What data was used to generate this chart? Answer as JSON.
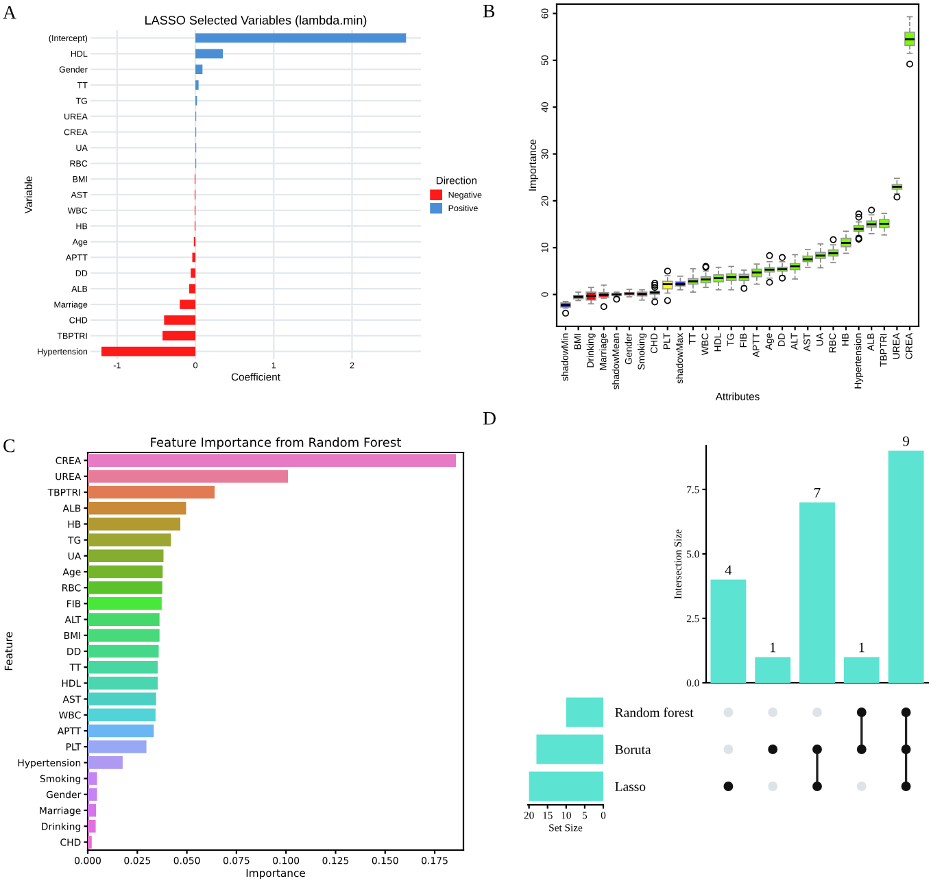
{
  "chart_data": [
    {
      "type": "bar",
      "orientation": "horizontal",
      "title": "LASSO Selected Variables (lambda.min)",
      "xlabel": "Coefficient",
      "ylabel": "Variable",
      "legend_title": "Direction",
      "legend": "right",
      "grid": true,
      "annotations": [
        "A"
      ],
      "categories": [
        "(Intercept)",
        "HDL",
        "Gender",
        "TT",
        "TG",
        "UREA",
        "CREA",
        "UA",
        "RBC",
        "BMI",
        "AST",
        "WBC",
        "HB",
        "Age",
        "APTT",
        "DD",
        "ALB",
        "Marriage",
        "CHD",
        "TBPTRI",
        "Hypertension"
      ],
      "series": [
        {
          "name": "Negative",
          "color": "#ff1a1a",
          "values": [
            null,
            null,
            null,
            null,
            null,
            null,
            null,
            null,
            null,
            -0.01,
            -0.01,
            -0.01,
            -0.01,
            -0.02,
            -0.04,
            -0.06,
            -0.08,
            -0.2,
            -0.4,
            -0.42,
            -1.2
          ]
        },
        {
          "name": "Positive",
          "color": "#4a8fd6",
          "values": [
            2.69,
            0.35,
            0.09,
            0.04,
            0.02,
            0.01,
            0.01,
            0.01,
            0.01,
            null,
            null,
            null,
            null,
            null,
            null,
            null,
            null,
            null,
            null,
            null,
            null
          ]
        }
      ],
      "xlim": [
        -1.34,
        2.88
      ],
      "xticks": [
        -1,
        0,
        1,
        2
      ]
    },
    {
      "type": "box",
      "xlabel": "Attributes",
      "ylabel": "Importance",
      "annotations": [
        "B"
      ],
      "categories": [
        "shadowMin",
        "BMI",
        "Drinking",
        "Marriage",
        "shadowMean",
        "Gender",
        "Smoking",
        "CHD",
        "PLT",
        "shadowMax",
        "TT",
        "WBC",
        "HDL",
        "TG",
        "FIB",
        "APTT",
        "Age",
        "DD",
        "ALT",
        "AST",
        "UA",
        "RBC",
        "HB",
        "Hypertension",
        "ALB",
        "TBPTRI",
        "UREA",
        "CREA"
      ],
      "colors": [
        "#0000ff",
        "#ff0000",
        "#ff0000",
        "#ff0000",
        "#0000ff",
        "#ff0000",
        "#ff0000",
        "#ff0000",
        "#ffff00",
        "#0000ff",
        "#7cfc00",
        "#7cfc00",
        "#7cfc00",
        "#7cfc00",
        "#7cfc00",
        "#7cfc00",
        "#7cfc00",
        "#7cfc00",
        "#7cfc00",
        "#7cfc00",
        "#7cfc00",
        "#7cfc00",
        "#7cfc00",
        "#7cfc00",
        "#7cfc00",
        "#7cfc00",
        "#7cfc00",
        "#7cfc00"
      ],
      "boxes": [
        {
          "low": -2.9,
          "q1": -2.7,
          "median": -2.3,
          "q3": -1.8,
          "high": -1.5,
          "outliers": [
            -4
          ]
        },
        {
          "low": -1.3,
          "q1": -0.9,
          "median": -0.5,
          "q3": -0.2,
          "high": 0.5
        },
        {
          "low": -2,
          "q1": -1.2,
          "median": -0.3,
          "q3": 0.5,
          "high": 1.5
        },
        {
          "low": -0.8,
          "q1": -0.6,
          "median": -0.1,
          "q3": 0.4,
          "high": 2,
          "outliers": [
            -2.6
          ]
        },
        {
          "low": -0.5,
          "q1": -0.2,
          "median": 0,
          "q3": 0.2,
          "high": 0.5,
          "outliers": [
            -1
          ]
        },
        {
          "low": -0.5,
          "q1": -0.1,
          "median": 0.2,
          "q3": 0.4,
          "high": 1.1
        },
        {
          "low": -1.2,
          "q1": -0.3,
          "median": 0.1,
          "q3": 0.5,
          "high": 1
        },
        {
          "low": -0.8,
          "q1": 0.1,
          "median": 0.4,
          "q3": 0.7,
          "high": 1.2,
          "outliers": [
            1.5,
            2,
            2.4,
            -1.6
          ]
        },
        {
          "low": 0.3,
          "q1": 1.2,
          "median": 2.2,
          "q3": 2.8,
          "high": 4,
          "outliers": [
            5,
            -1.3
          ]
        },
        {
          "low": 1,
          "q1": 1.8,
          "median": 2.2,
          "q3": 2.7,
          "high": 3.9
        },
        {
          "low": 0.5,
          "q1": 2.2,
          "median": 2.8,
          "q3": 3.4,
          "high": 5.5
        },
        {
          "low": 1.5,
          "q1": 2.5,
          "median": 3.2,
          "q3": 3.8,
          "high": 5,
          "outliers": [
            5.8,
            6
          ]
        },
        {
          "low": 1,
          "q1": 2.7,
          "median": 3.5,
          "q3": 4.2,
          "high": 5.8
        },
        {
          "low": 1,
          "q1": 3,
          "median": 3.7,
          "q3": 4.4,
          "high": 6
        },
        {
          "low": 1.8,
          "q1": 3,
          "median": 3.7,
          "q3": 4.3,
          "high": 5.2,
          "outliers": [
            1.3
          ]
        },
        {
          "low": 2.2,
          "q1": 3.8,
          "median": 4.7,
          "q3": 5.4,
          "high": 6.5
        },
        {
          "low": 3.5,
          "q1": 4.8,
          "median": 5.3,
          "q3": 5.7,
          "high": 7,
          "outliers": [
            8.3,
            2.6
          ]
        },
        {
          "low": 4,
          "q1": 5,
          "median": 5.4,
          "q3": 5.8,
          "high": 7,
          "outliers": [
            7.9,
            3.5
          ]
        },
        {
          "low": 3.3,
          "q1": 5.3,
          "median": 6,
          "q3": 6.6,
          "high": 8.5
        },
        {
          "low": 5.8,
          "q1": 7,
          "median": 7.5,
          "q3": 8.2,
          "high": 9.6
        },
        {
          "low": 5.7,
          "q1": 7.7,
          "median": 8.3,
          "q3": 9,
          "high": 10.8
        },
        {
          "low": 6.8,
          "q1": 8.2,
          "median": 8.8,
          "q3": 9.5,
          "high": 10.6,
          "outliers": [
            11.7
          ]
        },
        {
          "low": 8.8,
          "q1": 10.2,
          "median": 11,
          "q3": 12,
          "high": 13.5
        },
        {
          "low": 12.5,
          "q1": 13.5,
          "median": 14,
          "q3": 14.7,
          "high": 15.5,
          "outliers": [
            16.5,
            17.2,
            11.8,
            12
          ]
        },
        {
          "low": 13,
          "q1": 14.4,
          "median": 15,
          "q3": 15.7,
          "high": 17,
          "outliers": [
            18
          ]
        },
        {
          "low": 12.7,
          "q1": 14.3,
          "median": 15.1,
          "q3": 16,
          "high": 17.3
        },
        {
          "low": 21.5,
          "q1": 22.5,
          "median": 23,
          "q3": 23.5,
          "high": 24.8,
          "outliers": [
            20.8
          ]
        },
        {
          "low": 51.5,
          "q1": 53.2,
          "median": 54.5,
          "q3": 56,
          "high": 59.3,
          "outliers": [
            49.2
          ]
        }
      ],
      "ylim": [
        -6.8,
        62
      ],
      "yticks": [
        0,
        10,
        20,
        30,
        40,
        50,
        60
      ]
    },
    {
      "type": "bar",
      "orientation": "horizontal",
      "title": "Feature Importance from Random Forest",
      "xlabel": "Importance",
      "ylabel": "Feature",
      "annotations": [
        "C"
      ],
      "categories": [
        "CREA",
        "UREA",
        "TBPTRI",
        "ALB",
        "HB",
        "TG",
        "UA",
        "Age",
        "RBC",
        "FIB",
        "ALT",
        "BMI",
        "DD",
        "TT",
        "HDL",
        "AST",
        "WBC",
        "APTT",
        "PLT",
        "Hypertension",
        "Smoking",
        "Gender",
        "Marriage",
        "Drinking",
        "CHD"
      ],
      "values": [
        0.1857,
        0.101,
        0.064,
        0.0496,
        0.0467,
        0.042,
        0.0382,
        0.0378,
        0.0376,
        0.0373,
        0.0362,
        0.0362,
        0.0358,
        0.0353,
        0.0353,
        0.0345,
        0.0342,
        0.0333,
        0.0296,
        0.0176,
        0.0047,
        0.0047,
        0.0042,
        0.004,
        0.002
      ],
      "colors": [
        "#e67ac4",
        "#e77c9a",
        "#e07b54",
        "#c98a3a",
        "#b09a31",
        "#9da632",
        "#86ad2f",
        "#74b52c",
        "#5cc22b",
        "#48e83a",
        "#45d86a",
        "#47d97a",
        "#46d88a",
        "#48d7a0",
        "#4bd6b0",
        "#4cd0c3",
        "#52d3d8",
        "#6ab6f5",
        "#97a8f5",
        "#ae9af3",
        "#c584f3",
        "#c584f3",
        "#d573ea",
        "#e26fe0",
        "#e76fd0"
      ],
      "xlim": [
        0,
        0.1895
      ],
      "xticks": [
        {
          "value": 0,
          "label": "0.000"
        },
        {
          "value": 0.025,
          "label": "0.025"
        },
        {
          "value": 0.05,
          "label": "0.050"
        },
        {
          "value": 0.075,
          "label": "0.075"
        },
        {
          "value": 0.1,
          "label": "0.100"
        },
        {
          "value": 0.125,
          "label": "0.125"
        },
        {
          "value": 0.15,
          "label": "0.150"
        },
        {
          "value": 0.175,
          "label": "0.175"
        }
      ]
    },
    {
      "type": "bar",
      "ylabel": "Intersection Size",
      "annotations": [
        "D"
      ],
      "data_labels": true,
      "categories": [
        null,
        null,
        null,
        null,
        null
      ],
      "values": [
        4,
        1,
        7,
        1,
        9
      ],
      "color": "#5ce3d2",
      "ylim": [
        0,
        9.2
      ],
      "yticks": [
        {
          "value": 0,
          "label": "0.0"
        },
        {
          "value": 2.5,
          "label": "2.5"
        },
        {
          "value": 5,
          "label": "5.0"
        },
        {
          "value": 7.5,
          "label": "7.5"
        }
      ]
    },
    {
      "type": "bar",
      "orientation": "horizontal",
      "xlabel": "Set Size",
      "categories": [
        "Random forest",
        "Boruta",
        "Lasso"
      ],
      "values": [
        10,
        18,
        20
      ],
      "color": "#5ce3d2",
      "xlim": [
        20.3,
        0
      ],
      "xticks": [
        20,
        15,
        10,
        5,
        0
      ]
    }
  ]
}
